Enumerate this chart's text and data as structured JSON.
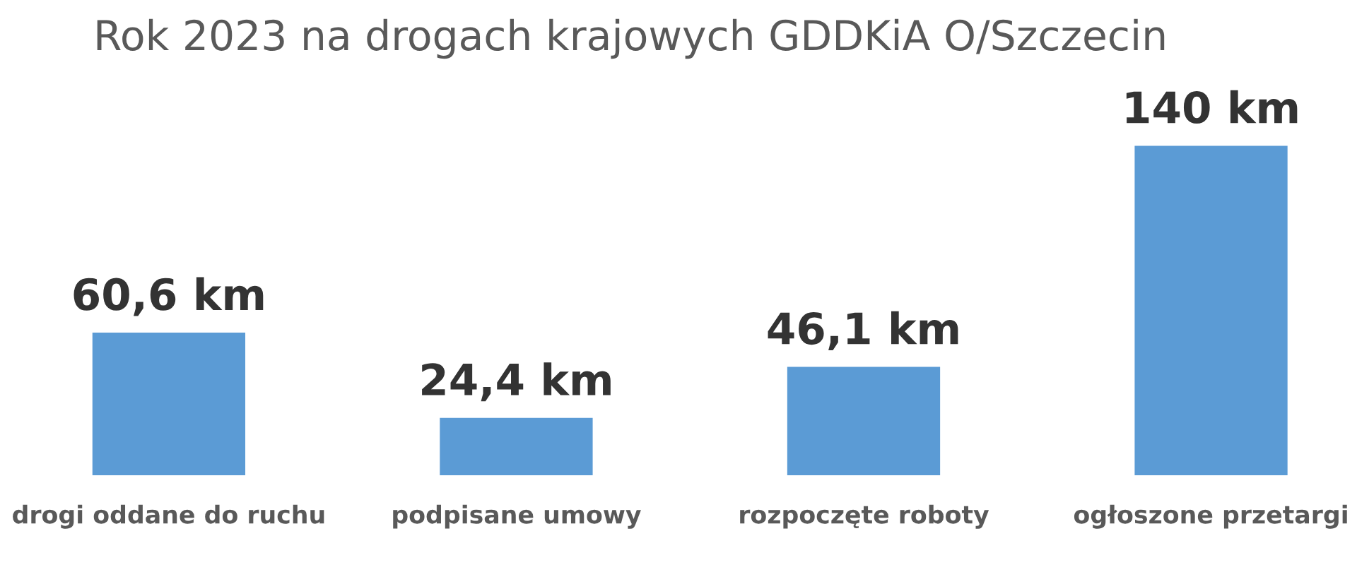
{
  "chart_data": {
    "type": "bar",
    "title": "Rok 2023 na drogach krajowych GDDKiA O/Szczecin",
    "categories": [
      "drogi oddane do ruchu",
      "podpisane umowy",
      "rozpoczęte roboty",
      "ogłoszone przetargi"
    ],
    "values": [
      60.6,
      24.4,
      46.1,
      140
    ],
    "value_labels": [
      "60,6 km",
      "24,4 km",
      "46,1 km",
      "140 km"
    ],
    "color": "#5b9bd5",
    "grid": false,
    "legend": false
  }
}
